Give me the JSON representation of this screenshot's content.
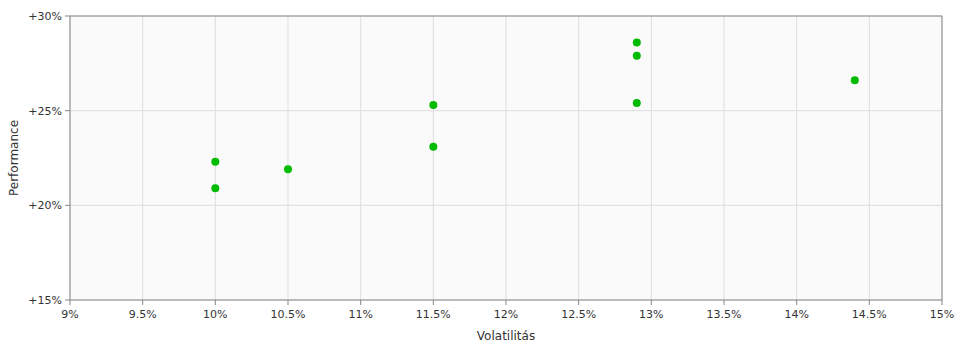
{
  "chart_data": {
    "type": "scatter",
    "x_label": "Volatilitás",
    "y_label": "Performance",
    "x": [
      10.0,
      10.0,
      10.5,
      11.5,
      11.5,
      12.9,
      12.9,
      12.9,
      14.4
    ],
    "values": [
      22.3,
      20.9,
      21.9,
      25.3,
      23.1,
      28.6,
      27.9,
      25.4,
      26.6
    ],
    "color": "#00bb00",
    "xlim": [
      9.0,
      15.0
    ],
    "ylim": [
      15.0,
      30.0
    ],
    "xticks": [
      {
        "value": 9.0,
        "label": "9%"
      },
      {
        "value": 9.5,
        "label": "9.5%"
      },
      {
        "value": 10.0,
        "label": "10%"
      },
      {
        "value": 10.5,
        "label": "10.5%"
      },
      {
        "value": 11.0,
        "label": "11%"
      },
      {
        "value": 11.5,
        "label": "11.5%"
      },
      {
        "value": 12.0,
        "label": "12%"
      },
      {
        "value": 12.5,
        "label": "12.5%"
      },
      {
        "value": 13.0,
        "label": "13%"
      },
      {
        "value": 13.5,
        "label": "13.5%"
      },
      {
        "value": 14.0,
        "label": "14%"
      },
      {
        "value": 14.5,
        "label": "14.5%"
      },
      {
        "value": 15.0,
        "label": "15%"
      }
    ],
    "yticks": [
      {
        "value": 15.0,
        "label": "+15%"
      },
      {
        "value": 20.0,
        "label": "+20%"
      },
      {
        "value": 25.0,
        "label": "+25%"
      },
      {
        "value": 30.0,
        "label": "+30%"
      }
    ],
    "grid": true
  }
}
